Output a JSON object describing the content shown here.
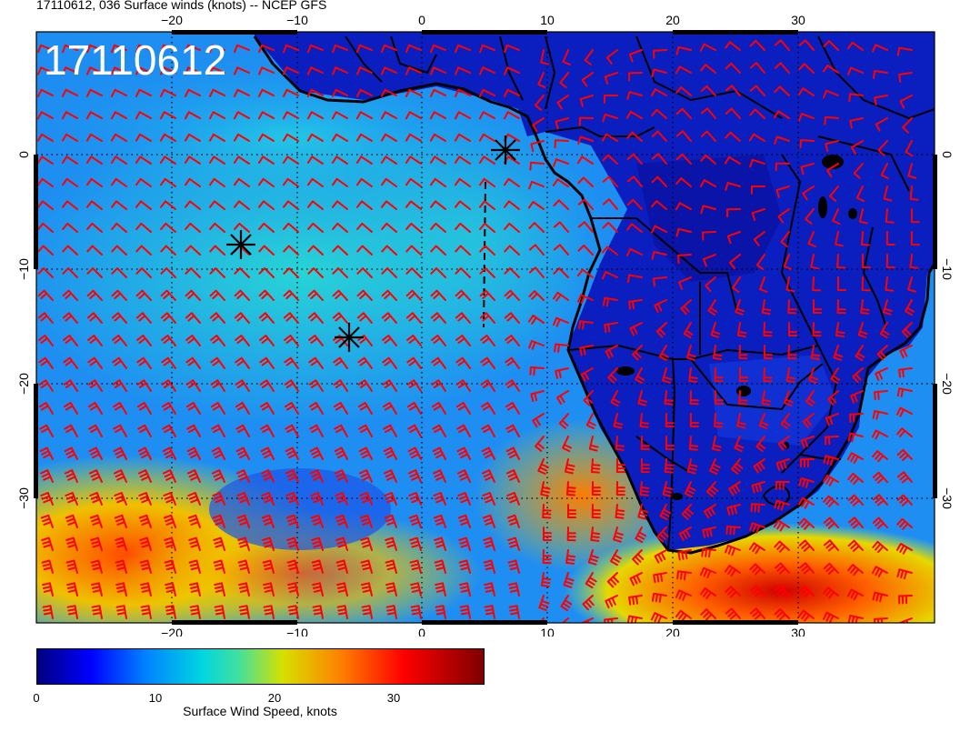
{
  "title": "17110612, 036 Surface winds (knots) -- NCEP GFS",
  "stamp": "17110612",
  "axes": {
    "lon_ticks": [
      "−20",
      "−10",
      "0",
      "10",
      "20",
      "30"
    ],
    "lat_ticks": [
      "0",
      "−10",
      "−20",
      "−30"
    ]
  },
  "colorbar": {
    "label": "Surface Wind Speed, knots",
    "ticks": [
      "0",
      "10",
      "20",
      "30"
    ]
  },
  "colors": {
    "barb": "#ff0000",
    "coast": "#000000",
    "low": "#00007f",
    "high": "#7f0000"
  },
  "markers": [
    "asterisk",
    "asterisk",
    "asterisk"
  ]
}
